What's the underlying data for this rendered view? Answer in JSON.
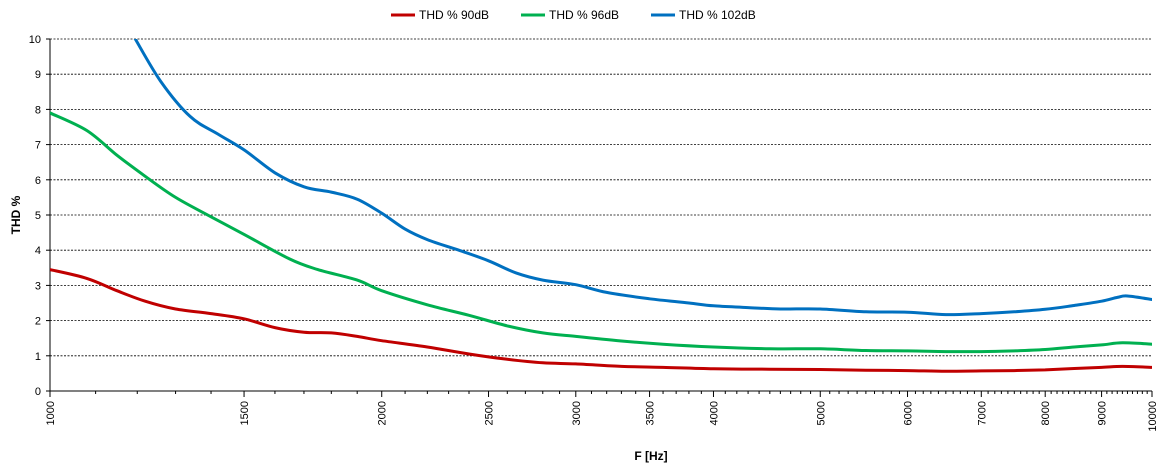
{
  "chart_data": {
    "type": "line",
    "xlabel": "F [Hz]",
    "ylabel": "THD %",
    "x_scale": "log",
    "xlim": [
      1000,
      10000
    ],
    "ylim": [
      0,
      10
    ],
    "y_ticks": [
      0,
      1,
      2,
      3,
      4,
      5,
      6,
      7,
      8,
      9,
      10
    ],
    "x_ticks": [
      1000,
      1500,
      2000,
      2500,
      3000,
      3500,
      4000,
      5000,
      6000,
      7000,
      8000,
      9000,
      10000
    ],
    "x_tick_labels": [
      "1000",
      "1500",
      "2000",
      "2500",
      "3000",
      "3500",
      "4000",
      "5000",
      "6000",
      "7000",
      "8000",
      "9000",
      "10000"
    ],
    "grid": "horizontal",
    "legend_position": "top",
    "series": [
      {
        "name": "THD % 90dB",
        "color": "#C00000",
        "points": [
          [
            1000,
            3.45
          ],
          [
            1080,
            3.2
          ],
          [
            1150,
            2.85
          ],
          [
            1220,
            2.55
          ],
          [
            1300,
            2.33
          ],
          [
            1400,
            2.2
          ],
          [
            1500,
            2.05
          ],
          [
            1600,
            1.8
          ],
          [
            1700,
            1.67
          ],
          [
            1800,
            1.65
          ],
          [
            1900,
            1.55
          ],
          [
            2000,
            1.43
          ],
          [
            2200,
            1.25
          ],
          [
            2400,
            1.05
          ],
          [
            2600,
            0.9
          ],
          [
            2800,
            0.8
          ],
          [
            3000,
            0.77
          ],
          [
            3300,
            0.7
          ],
          [
            3600,
            0.67
          ],
          [
            4000,
            0.63
          ],
          [
            4500,
            0.62
          ],
          [
            5000,
            0.61
          ],
          [
            5500,
            0.59
          ],
          [
            6000,
            0.58
          ],
          [
            6500,
            0.56
          ],
          [
            7000,
            0.57
          ],
          [
            7500,
            0.58
          ],
          [
            8000,
            0.6
          ],
          [
            8500,
            0.64
          ],
          [
            9000,
            0.67
          ],
          [
            9400,
            0.7
          ],
          [
            10000,
            0.67
          ]
        ]
      },
      {
        "name": "THD % 96dB",
        "color": "#00B050",
        "points": [
          [
            1000,
            7.9
          ],
          [
            1080,
            7.4
          ],
          [
            1150,
            6.7
          ],
          [
            1220,
            6.1
          ],
          [
            1300,
            5.5
          ],
          [
            1400,
            4.95
          ],
          [
            1500,
            4.45
          ],
          [
            1650,
            3.75
          ],
          [
            1750,
            3.45
          ],
          [
            1900,
            3.15
          ],
          [
            2000,
            2.85
          ],
          [
            2200,
            2.45
          ],
          [
            2400,
            2.15
          ],
          [
            2600,
            1.85
          ],
          [
            2800,
            1.65
          ],
          [
            3000,
            1.55
          ],
          [
            3300,
            1.42
          ],
          [
            3600,
            1.33
          ],
          [
            4000,
            1.25
          ],
          [
            4500,
            1.2
          ],
          [
            5000,
            1.2
          ],
          [
            5500,
            1.15
          ],
          [
            6000,
            1.14
          ],
          [
            6500,
            1.12
          ],
          [
            7000,
            1.12
          ],
          [
            7500,
            1.14
          ],
          [
            8000,
            1.18
          ],
          [
            8500,
            1.25
          ],
          [
            9000,
            1.31
          ],
          [
            9400,
            1.37
          ],
          [
            10000,
            1.33
          ]
        ]
      },
      {
        "name": "THD % 102dB",
        "color": "#0070C0",
        "points": [
          [
            1195,
            10
          ],
          [
            1260,
            8.8
          ],
          [
            1340,
            7.8
          ],
          [
            1420,
            7.3
          ],
          [
            1500,
            6.85
          ],
          [
            1600,
            6.2
          ],
          [
            1700,
            5.8
          ],
          [
            1800,
            5.65
          ],
          [
            1900,
            5.45
          ],
          [
            2000,
            5.05
          ],
          [
            2100,
            4.6
          ],
          [
            2200,
            4.3
          ],
          [
            2350,
            4.0
          ],
          [
            2500,
            3.7
          ],
          [
            2650,
            3.35
          ],
          [
            2800,
            3.15
          ],
          [
            3000,
            3.02
          ],
          [
            3200,
            2.8
          ],
          [
            3500,
            2.62
          ],
          [
            3800,
            2.5
          ],
          [
            4000,
            2.42
          ],
          [
            4300,
            2.37
          ],
          [
            4600,
            2.33
          ],
          [
            5000,
            2.33
          ],
          [
            5500,
            2.25
          ],
          [
            6000,
            2.24
          ],
          [
            6500,
            2.17
          ],
          [
            7000,
            2.2
          ],
          [
            7500,
            2.25
          ],
          [
            8000,
            2.32
          ],
          [
            8500,
            2.43
          ],
          [
            9000,
            2.55
          ],
          [
            9300,
            2.66
          ],
          [
            9500,
            2.7
          ],
          [
            10000,
            2.6
          ]
        ]
      }
    ]
  }
}
